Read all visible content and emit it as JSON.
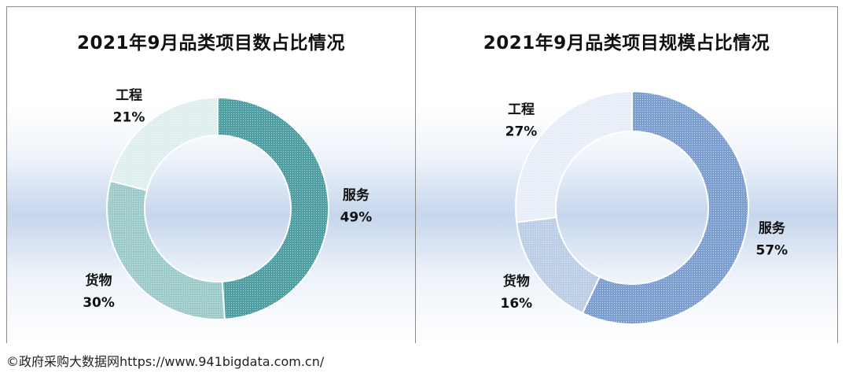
{
  "charts": [
    {
      "type": "pie",
      "title": "2021年9月品类项目数占比情况",
      "slices": [
        {
          "name": "服务",
          "value": 49,
          "pct": "49%"
        },
        {
          "name": "货物",
          "value": 30,
          "pct": "30%"
        },
        {
          "name": "工程",
          "value": 21,
          "pct": "21%"
        }
      ],
      "colors": [
        "#4e9ea2",
        "#9ccbc9",
        "#dfeeee"
      ]
    },
    {
      "type": "pie",
      "title": "2021年9月品类项目规模占比情况",
      "slices": [
        {
          "name": "服务",
          "value": 57,
          "pct": "57%"
        },
        {
          "name": "货物",
          "value": 16,
          "pct": "16%"
        },
        {
          "name": "工程",
          "value": 27,
          "pct": "27%"
        }
      ],
      "colors": [
        "#7d9fd0",
        "#bccde6",
        "#e7eef8"
      ]
    }
  ],
  "footer": {
    "text": "©政府采购大数据网https://www.941bigdata.com.cn/"
  }
}
